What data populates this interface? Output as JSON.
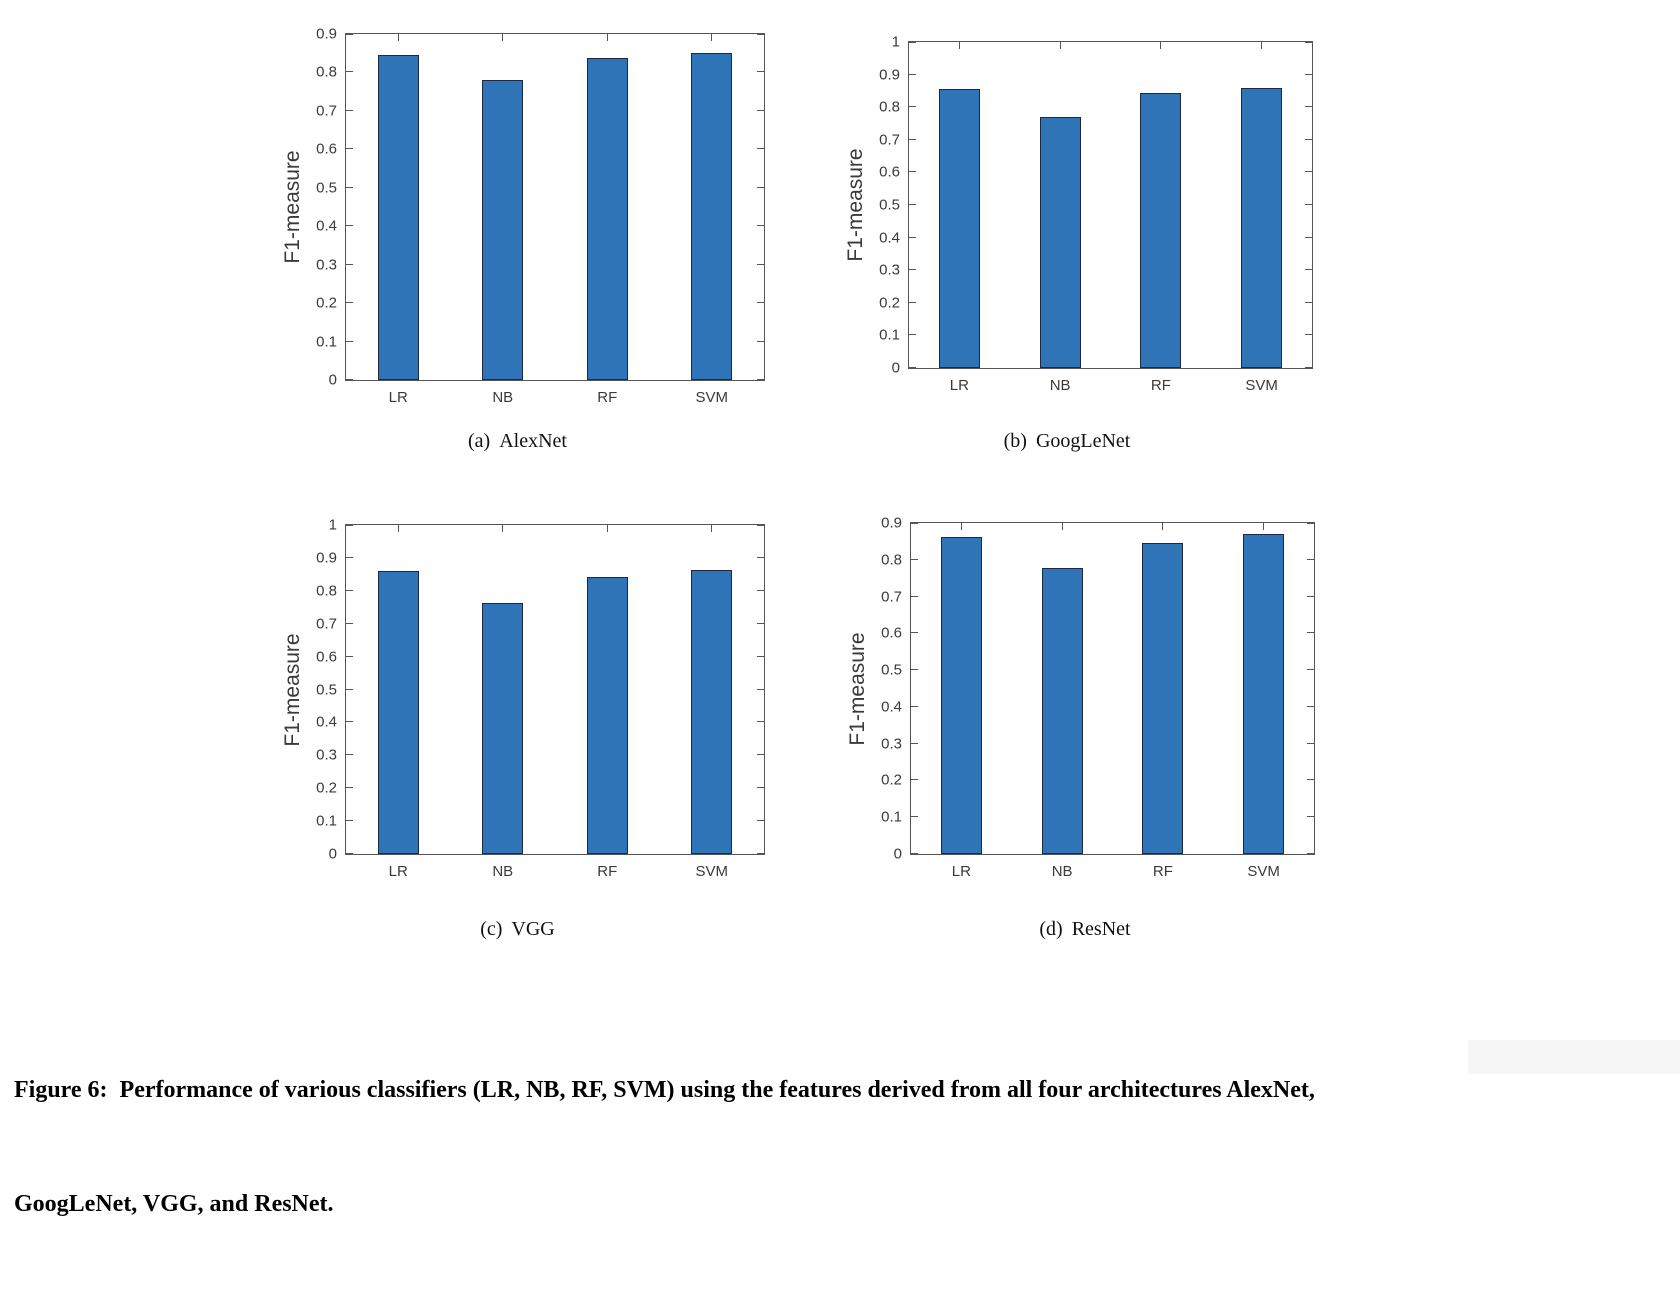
{
  "colors": {
    "bar_fill": "#2F74B6",
    "bar_edge": "#1B2A44",
    "axis": "#555555",
    "text": "#3a3a3a"
  },
  "chart_data": [
    {
      "type": "bar",
      "subplot_label": "(a)",
      "title": "AlexNet",
      "categories": [
        "LR",
        "NB",
        "RF",
        "SVM"
      ],
      "values": [
        0.845,
        0.781,
        0.838,
        0.85
      ],
      "xlabel": "",
      "ylabel": "F1-measure",
      "ylim": [
        0,
        0.9
      ],
      "ytick_labels": [
        "0",
        "0.1",
        "0.2",
        "0.3",
        "0.4",
        "0.5",
        "0.6",
        "0.7",
        "0.8",
        "0.9"
      ],
      "grid": false,
      "legend": "none"
    },
    {
      "type": "bar",
      "subplot_label": "(b)",
      "title": "GoogLeNet",
      "categories": [
        "LR",
        "NB",
        "RF",
        "SVM"
      ],
      "values": [
        0.856,
        0.77,
        0.843,
        0.86
      ],
      "xlabel": "",
      "ylabel": "F1-measure",
      "ylim": [
        0,
        1
      ],
      "ytick_labels": [
        "0",
        "0.1",
        "0.2",
        "0.3",
        "0.4",
        "0.5",
        "0.6",
        "0.7",
        "0.8",
        "0.9",
        "1"
      ],
      "grid": false,
      "legend": "none"
    },
    {
      "type": "bar",
      "subplot_label": "(c)",
      "title": "VGG",
      "categories": [
        "LR",
        "NB",
        "RF",
        "SVM"
      ],
      "values": [
        0.861,
        0.762,
        0.843,
        0.862
      ],
      "xlabel": "",
      "ylabel": "F1-measure",
      "ylim": [
        0,
        1
      ],
      "ytick_labels": [
        "0",
        "0.1",
        "0.2",
        "0.3",
        "0.4",
        "0.5",
        "0.6",
        "0.7",
        "0.8",
        "0.9",
        "1"
      ],
      "grid": false,
      "legend": "none"
    },
    {
      "type": "bar",
      "subplot_label": "(d)",
      "title": "ResNet",
      "categories": [
        "LR",
        "NB",
        "RF",
        "SVM"
      ],
      "values": [
        0.861,
        0.778,
        0.847,
        0.871
      ],
      "xlabel": "",
      "ylabel": "F1-measure",
      "ylim": [
        0,
        0.9
      ],
      "ytick_labels": [
        "0",
        "0.1",
        "0.2",
        "0.3",
        "0.4",
        "0.5",
        "0.6",
        "0.7",
        "0.8",
        "0.9"
      ],
      "grid": false,
      "legend": "none"
    }
  ],
  "figure_caption": {
    "lines": [
      "Figure 6:  Performance of various classifiers (LR, NB, RF, SVM) using the features derived from all four architectures AlexNet,",
      "GoogLeNet, VGG, and ResNet."
    ]
  }
}
